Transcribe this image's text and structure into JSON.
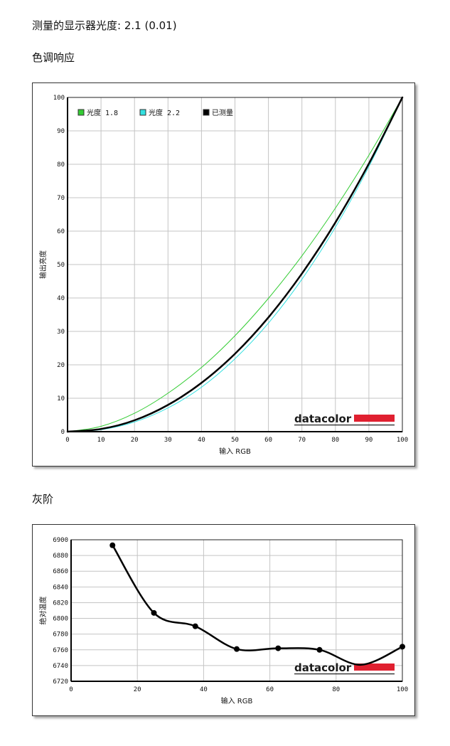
{
  "header": {
    "gamma_label": "测量的显示器光度:",
    "gamma_value": "2.1 (0.01)"
  },
  "sections": {
    "tone_title": "色调响应",
    "gray_title": "灰阶"
  },
  "logo": {
    "text": "datacolor",
    "colors": {
      "text": "#1a1a1a",
      "bar": "#e02030"
    }
  },
  "chart_data": [
    {
      "type": "line",
      "title": "色调响应",
      "xlabel": "输入 RGB",
      "ylabel": "输出亮度",
      "xlim": [
        0,
        100
      ],
      "ylim": [
        0,
        100
      ],
      "xticks": [
        0,
        10,
        20,
        30,
        40,
        50,
        60,
        70,
        80,
        90,
        100
      ],
      "yticks": [
        0,
        10,
        20,
        30,
        40,
        50,
        60,
        70,
        80,
        90,
        100
      ],
      "grid": true,
      "legend_position": "top-left",
      "series": [
        {
          "name": "光度 1.8",
          "color": "#33cc33",
          "gamma": 1.8,
          "x": [
            0,
            10,
            20,
            30,
            40,
            50,
            60,
            70,
            80,
            90,
            100
          ],
          "y": [
            0,
            1.6,
            5.5,
            11.5,
            19.2,
            28.7,
            39.9,
            52.6,
            66.9,
            82.7,
            100
          ]
        },
        {
          "name": "光度 2.2",
          "color": "#33e0e0",
          "gamma": 2.2,
          "x": [
            0,
            10,
            20,
            30,
            40,
            50,
            60,
            70,
            80,
            90,
            100
          ],
          "y": [
            0,
            0.6,
            2.9,
            7.1,
            13.3,
            21.8,
            32.5,
            45.6,
            61.2,
            79.3,
            100
          ]
        },
        {
          "name": "已测量",
          "color": "#000000",
          "gamma": 2.1,
          "x": [
            0,
            10,
            20,
            30,
            40,
            50,
            60,
            70,
            80,
            90,
            100
          ],
          "y": [
            0,
            0.8,
            3.4,
            8.0,
            14.6,
            23.3,
            34.2,
            47.3,
            62.6,
            80.2,
            100
          ]
        }
      ]
    },
    {
      "type": "line",
      "title": "灰阶",
      "xlabel": "输入 RGB",
      "ylabel": "绝对温度",
      "xlim": [
        0,
        100
      ],
      "ylim": [
        6720,
        6900
      ],
      "xticks": [
        0,
        20,
        40,
        60,
        80,
        100
      ],
      "yticks": [
        6720,
        6740,
        6760,
        6780,
        6800,
        6820,
        6840,
        6860,
        6880,
        6900
      ],
      "grid": true,
      "series": [
        {
          "color": "#000000",
          "x": [
            12.5,
            25,
            37.5,
            50,
            62.5,
            75,
            87.5,
            100
          ],
          "y": [
            6893,
            6807,
            6790,
            6761,
            6762,
            6760,
            6741,
            6764
          ],
          "markers_hidden_at_x": [
            87.5
          ]
        }
      ]
    }
  ]
}
